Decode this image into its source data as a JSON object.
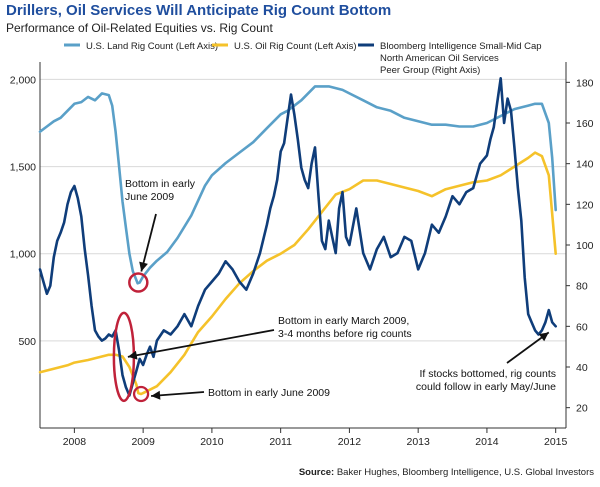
{
  "chart_data": {
    "type": "line",
    "title": "Drillers, Oil Services Will Anticipate Rig Count Bottom",
    "subtitle": "Performance of Oil-Related Equities vs. Rig Count",
    "source_label": "Source:",
    "source_text": "Baker Hughes, Bloomberg Intelligence, U.S. Global Investors",
    "x_ticks": [
      2008,
      2009,
      2010,
      2011,
      2012,
      2013,
      2014,
      2015
    ],
    "xlim": [
      2007.5,
      2015.15
    ],
    "left_axis": {
      "ylim": [
        0,
        2100
      ],
      "ticks": [
        500,
        1000,
        1500,
        2000
      ],
      "tick_labels": [
        "500",
        "1,000",
        "1,500",
        "2,000"
      ]
    },
    "right_axis": {
      "ylim": [
        10,
        190
      ],
      "ticks": [
        20,
        40,
        60,
        80,
        100,
        120,
        140,
        160,
        180
      ],
      "tick_labels": [
        "20",
        "40",
        "60",
        "80",
        "100",
        "120",
        "140",
        "160",
        "180"
      ]
    },
    "legend_position": "top",
    "series": [
      {
        "name": "U.S. Land Rig Count (Left Axis)",
        "axis": "left",
        "color": "#5aa0c8",
        "x": [
          2007.5,
          2007.6,
          2007.7,
          2007.8,
          2007.9,
          2008.0,
          2008.1,
          2008.2,
          2008.3,
          2008.4,
          2008.5,
          2008.55,
          2008.6,
          2008.65,
          2008.7,
          2008.75,
          2008.8,
          2008.85,
          2008.9,
          2008.92,
          2008.95,
          2009.0,
          2009.1,
          2009.2,
          2009.35,
          2009.5,
          2009.7,
          2009.9,
          2010.0,
          2010.2,
          2010.4,
          2010.6,
          2010.8,
          2011.0,
          2011.1,
          2011.3,
          2011.5,
          2011.7,
          2011.9,
          2012.0,
          2012.2,
          2012.4,
          2012.6,
          2012.8,
          2013.0,
          2013.2,
          2013.4,
          2013.6,
          2013.8,
          2014.0,
          2014.2,
          2014.4,
          2014.6,
          2014.7,
          2014.8,
          2014.9,
          2014.95,
          2015.0
        ],
        "y": [
          1700,
          1730,
          1760,
          1780,
          1820,
          1860,
          1870,
          1900,
          1880,
          1920,
          1910,
          1850,
          1700,
          1500,
          1300,
          1150,
          1000,
          900,
          850,
          830,
          835,
          870,
          920,
          960,
          1010,
          1090,
          1220,
          1390,
          1450,
          1520,
          1580,
          1640,
          1720,
          1800,
          1820,
          1880,
          1960,
          1960,
          1940,
          1920,
          1880,
          1840,
          1820,
          1780,
          1760,
          1740,
          1740,
          1730,
          1730,
          1750,
          1790,
          1830,
          1850,
          1860,
          1860,
          1750,
          1550,
          1250
        ]
      },
      {
        "name": "U.S. Oil Rig Count (Left Axis)",
        "axis": "left",
        "color": "#f5c22a",
        "x": [
          2007.5,
          2007.7,
          2007.9,
          2008.0,
          2008.2,
          2008.4,
          2008.5,
          2008.6,
          2008.7,
          2008.8,
          2008.9,
          2008.93,
          2008.97,
          2009.0,
          2009.2,
          2009.4,
          2009.6,
          2009.8,
          2010.0,
          2010.2,
          2010.4,
          2010.6,
          2010.8,
          2011.0,
          2011.2,
          2011.4,
          2011.6,
          2011.8,
          2012.0,
          2012.2,
          2012.4,
          2012.6,
          2012.8,
          2013.0,
          2013.2,
          2013.4,
          2013.6,
          2013.8,
          2014.0,
          2014.2,
          2014.4,
          2014.6,
          2014.7,
          2014.8,
          2014.9,
          2015.0
        ],
        "y": [
          320,
          340,
          360,
          375,
          390,
          410,
          420,
          420,
          410,
          350,
          250,
          200,
          195,
          200,
          240,
          320,
          420,
          550,
          640,
          740,
          830,
          900,
          960,
          1000,
          1050,
          1140,
          1240,
          1340,
          1370,
          1420,
          1420,
          1400,
          1380,
          1360,
          1330,
          1370,
          1390,
          1410,
          1420,
          1450,
          1500,
          1550,
          1580,
          1560,
          1450,
          1000
        ]
      },
      {
        "name": "Bloomberg Intelligence Small-Mid Cap North American Oil Services Peer Group (Right Axis)",
        "axis": "right",
        "color": "#0f3d7a",
        "x": [
          2007.5,
          2007.55,
          2007.6,
          2007.65,
          2007.7,
          2007.75,
          2007.8,
          2007.85,
          2007.9,
          2007.95,
          2008.0,
          2008.05,
          2008.1,
          2008.15,
          2008.2,
          2008.25,
          2008.3,
          2008.35,
          2008.4,
          2008.45,
          2008.5,
          2008.55,
          2008.6,
          2008.65,
          2008.7,
          2008.75,
          2008.8,
          2008.85,
          2008.9,
          2008.95,
          2009.0,
          2009.05,
          2009.1,
          2009.15,
          2009.2,
          2009.3,
          2009.4,
          2009.5,
          2009.6,
          2009.7,
          2009.8,
          2009.9,
          2010.0,
          2010.1,
          2010.2,
          2010.3,
          2010.4,
          2010.5,
          2010.6,
          2010.7,
          2010.8,
          2010.85,
          2010.9,
          2010.95,
          2011.0,
          2011.05,
          2011.1,
          2011.15,
          2011.2,
          2011.25,
          2011.3,
          2011.35,
          2011.4,
          2011.45,
          2011.5,
          2011.55,
          2011.6,
          2011.65,
          2011.7,
          2011.75,
          2011.8,
          2011.85,
          2011.9,
          2011.95,
          2012.0,
          2012.1,
          2012.2,
          2012.3,
          2012.4,
          2012.5,
          2012.6,
          2012.7,
          2012.8,
          2012.9,
          2013.0,
          2013.1,
          2013.2,
          2013.3,
          2013.4,
          2013.5,
          2013.6,
          2013.7,
          2013.8,
          2013.9,
          2014.0,
          2014.05,
          2014.1,
          2014.15,
          2014.2,
          2014.25,
          2014.3,
          2014.35,
          2014.4,
          2014.45,
          2014.5,
          2014.55,
          2014.6,
          2014.65,
          2014.7,
          2014.75,
          2014.8,
          2014.85,
          2014.9,
          2014.95,
          2015.0
        ],
        "y": [
          88,
          82,
          76,
          80,
          94,
          102,
          106,
          111,
          120,
          126,
          129,
          123,
          114,
          98,
          85,
          70,
          58,
          55,
          53,
          54,
          56,
          55,
          58,
          48,
          36,
          30,
          26,
          32,
          38,
          44,
          41,
          46,
          50,
          45,
          53,
          58,
          56,
          60,
          66,
          60,
          70,
          78,
          82,
          86,
          92,
          88,
          82,
          78,
          86,
          96,
          110,
          118,
          124,
          132,
          146,
          150,
          162,
          174,
          164,
          152,
          138,
          132,
          128,
          140,
          148,
          124,
          102,
          98,
          112,
          104,
          96,
          118,
          126,
          104,
          100,
          118,
          96,
          88,
          98,
          104,
          94,
          96,
          104,
          102,
          88,
          96,
          110,
          106,
          114,
          124,
          120,
          126,
          128,
          140,
          144,
          152,
          158,
          170,
          182,
          160,
          172,
          166,
          148,
          128,
          112,
          84,
          66,
          62,
          58,
          56,
          58,
          62,
          68,
          62,
          60
        ]
      }
    ],
    "annotations": [
      {
        "id": "land-bottom",
        "text": [
          "Bottom in early",
          "June 2009"
        ]
      },
      {
        "id": "stocks-bottom",
        "text": [
          "Bottom in early March 2009,",
          "3-4 months before rig counts"
        ]
      },
      {
        "id": "oil-bottom",
        "text": [
          "Bottom in early June 2009"
        ]
      },
      {
        "id": "future-bottom",
        "text": [
          "If stocks bottomed, rig counts",
          "could follow in early May/June"
        ]
      }
    ]
  }
}
